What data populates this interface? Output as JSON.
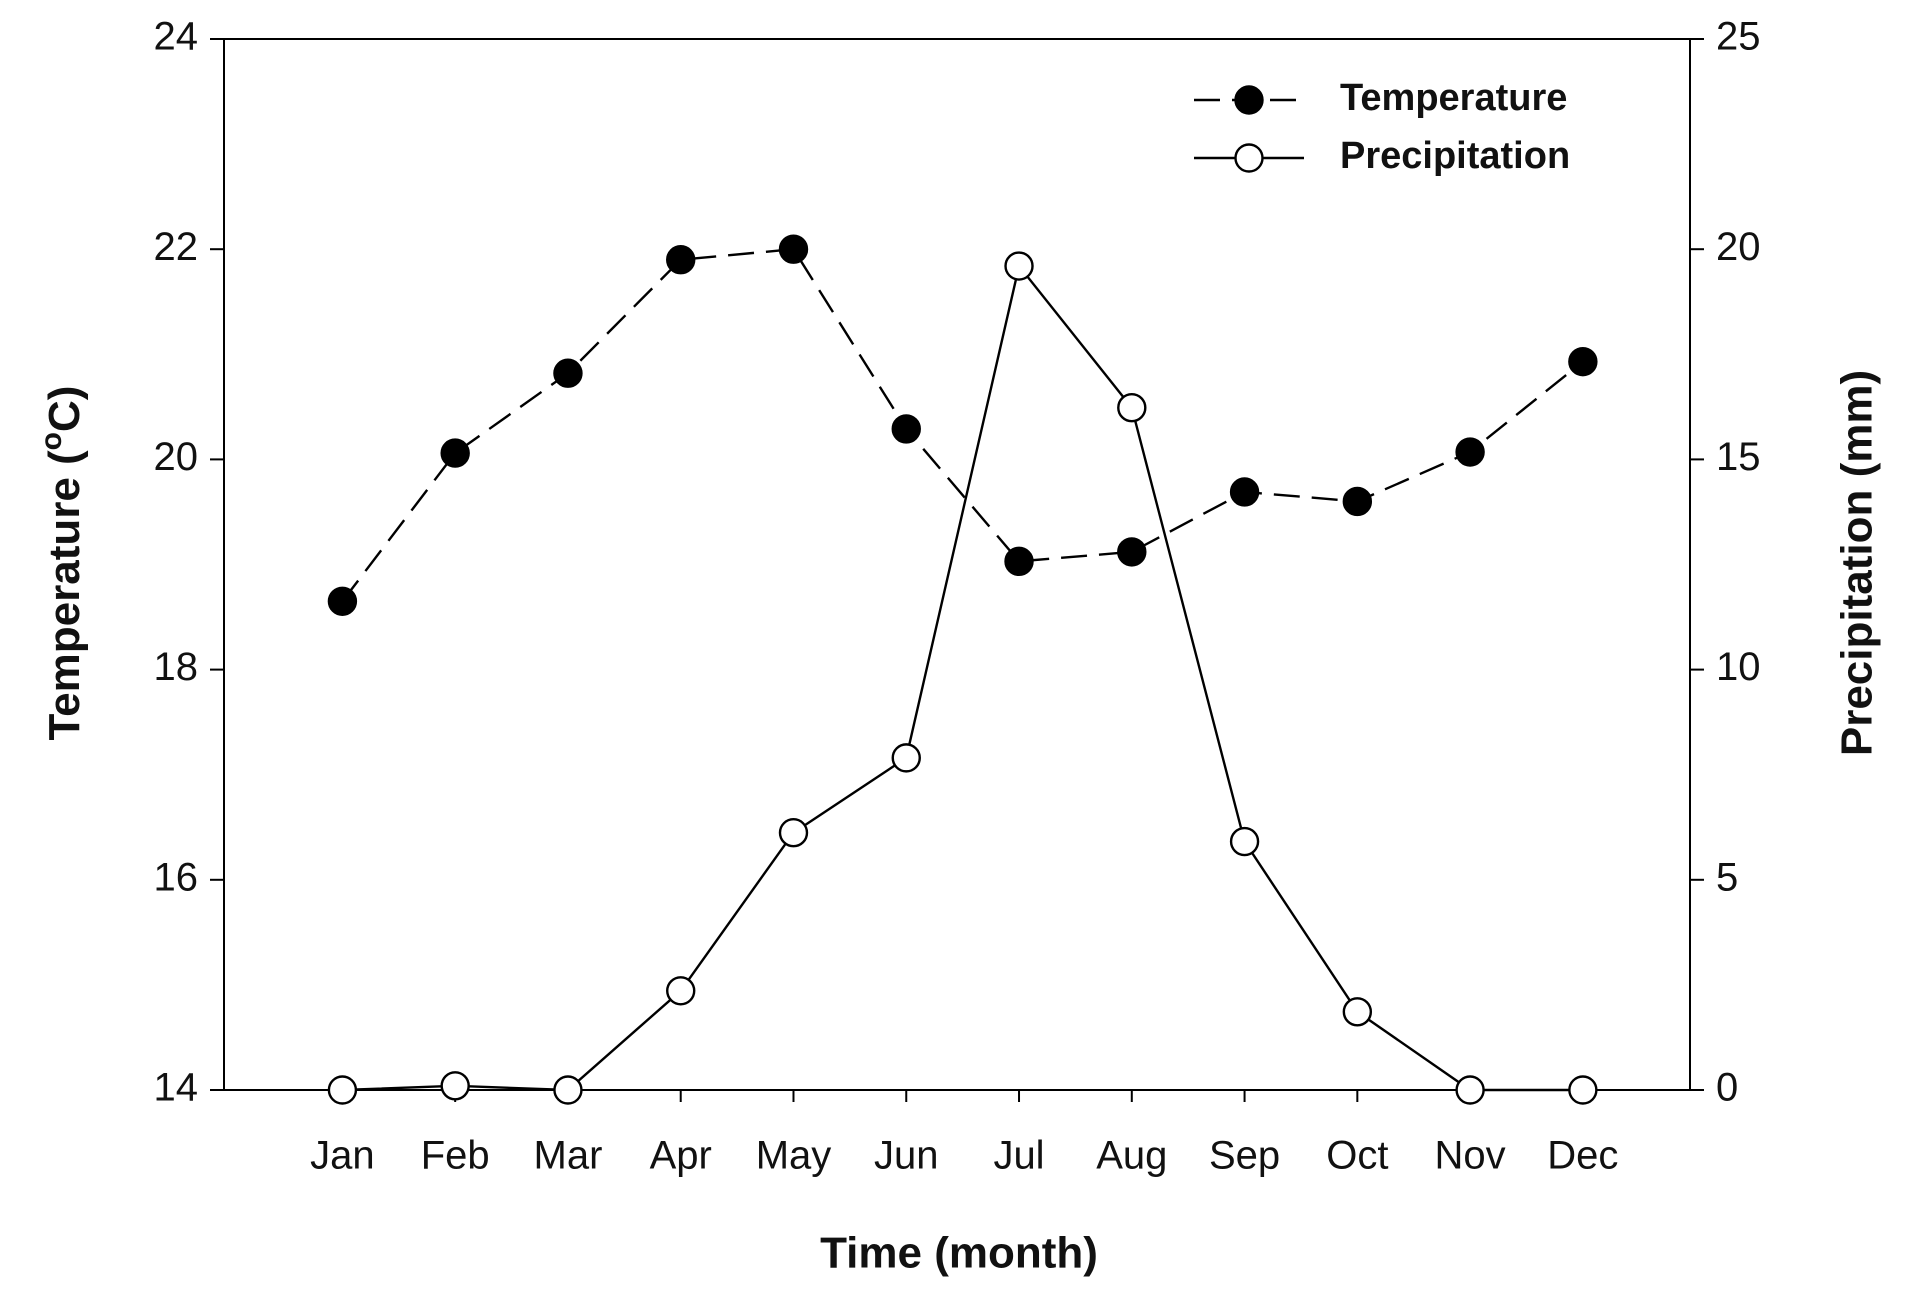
{
  "chart_data": {
    "type": "line",
    "x_label": "Time (month)",
    "y_label": [
      "Temperature (",
      "o",
      "C)"
    ],
    "y2_label": "Precipitation (mm)",
    "categories": [
      "Jan",
      "Feb",
      "Mar",
      "Apr",
      "May",
      "Jun",
      "Jul",
      "Aug",
      "Sep",
      "Oct",
      "Nov",
      "Dec"
    ],
    "series": [
      {
        "name": "Temperature",
        "color": "#000000",
        "marker": "filled",
        "dash": true,
        "values": [
          18.65,
          20.06,
          20.82,
          21.9,
          22.0,
          20.29,
          19.03,
          19.12,
          19.69,
          19.6,
          20.07,
          20.93
        ]
      },
      {
        "name": "Precipitation",
        "color": "#000000",
        "marker": "open",
        "dash": false,
        "axis": "y2",
        "values": [
          0,
          0.1,
          0,
          2.36,
          6.12,
          7.9,
          19.6,
          16.23,
          5.91,
          1.86,
          0,
          0
        ]
      }
    ],
    "ylim": [
      14,
      24
    ],
    "yticks": [
      14,
      16,
      18,
      20,
      22,
      24
    ],
    "y2lim": [
      0,
      25
    ],
    "y2ticks": [
      0,
      5,
      10,
      15,
      20,
      25
    ],
    "legend": "upper right",
    "grid": false
  }
}
